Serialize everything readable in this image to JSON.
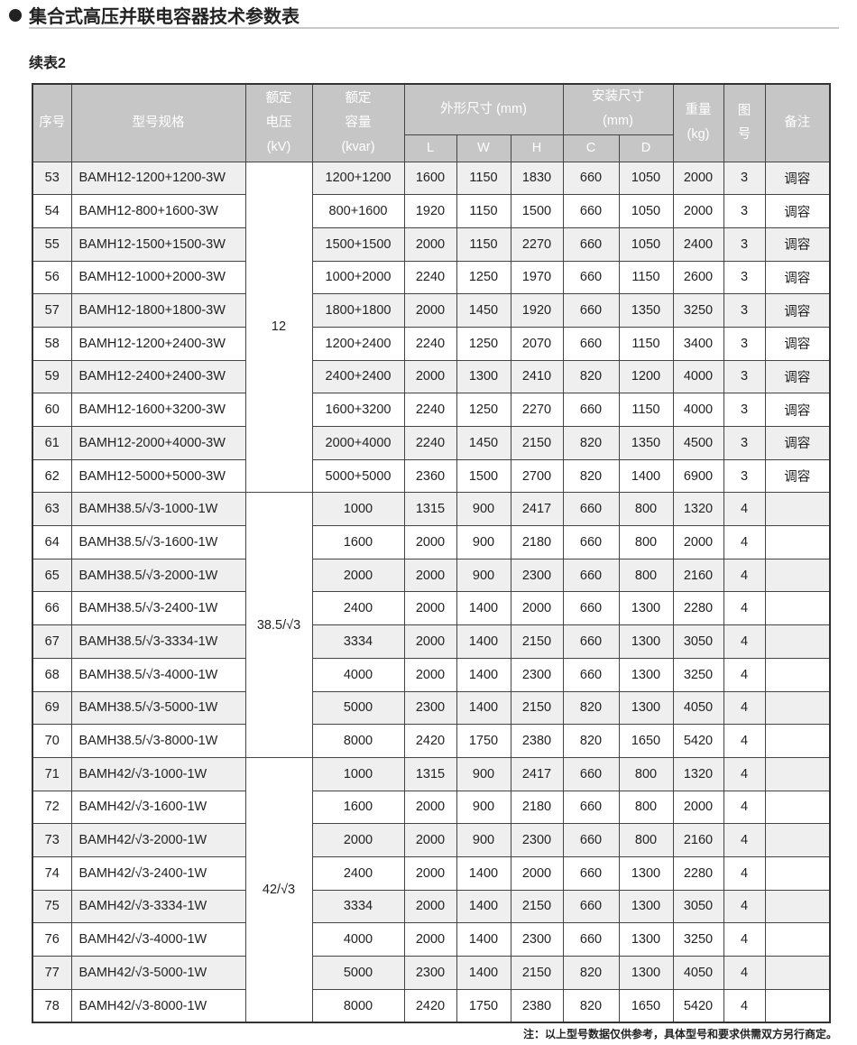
{
  "title": "集合式高压并联电容器技术参数表",
  "subtitle": "续表2",
  "header": {
    "no": "序号",
    "model": "型号规格",
    "voltage": [
      "额定",
      "电压",
      "(kV)"
    ],
    "capacity": [
      "额定",
      "容量",
      "(kvar)"
    ],
    "outline": "外形尺寸  (mm)",
    "install": [
      "安装尺寸",
      "(mm)"
    ],
    "weight": [
      "重量",
      "(kg)"
    ],
    "fig": "图号",
    "remark": "备注",
    "L": "L",
    "W": "W",
    "H": "H",
    "C": "C",
    "D": "D"
  },
  "groups": [
    {
      "voltage": "12",
      "rows": [
        [
          "53",
          "BAMH12-1200+1200-3W",
          "1200+1200",
          "1600",
          "1150",
          "1830",
          "660",
          "1050",
          "2000",
          "3",
          "调容"
        ],
        [
          "54",
          "BAMH12-800+1600-3W",
          "800+1600",
          "1920",
          "1150",
          "1500",
          "660",
          "1050",
          "2000",
          "3",
          "调容"
        ],
        [
          "55",
          "BAMH12-1500+1500-3W",
          "1500+1500",
          "2000",
          "1150",
          "2270",
          "660",
          "1050",
          "2400",
          "3",
          "调容"
        ],
        [
          "56",
          "BAMH12-1000+2000-3W",
          "1000+2000",
          "2240",
          "1250",
          "1970",
          "660",
          "1150",
          "2600",
          "3",
          "调容"
        ],
        [
          "57",
          "BAMH12-1800+1800-3W",
          "1800+1800",
          "2000",
          "1450",
          "1920",
          "660",
          "1350",
          "3250",
          "3",
          "调容"
        ],
        [
          "58",
          "BAMH12-1200+2400-3W",
          "1200+2400",
          "2240",
          "1250",
          "2070",
          "660",
          "1150",
          "3400",
          "3",
          "调容"
        ],
        [
          "59",
          "BAMH12-2400+2400-3W",
          "2400+2400",
          "2000",
          "1300",
          "2410",
          "820",
          "1200",
          "4000",
          "3",
          "调容"
        ],
        [
          "60",
          "BAMH12-1600+3200-3W",
          "1600+3200",
          "2240",
          "1250",
          "2270",
          "660",
          "1150",
          "4000",
          "3",
          "调容"
        ],
        [
          "61",
          "BAMH12-2000+4000-3W",
          "2000+4000",
          "2240",
          "1450",
          "2150",
          "820",
          "1350",
          "4500",
          "3",
          "调容"
        ],
        [
          "62",
          "BAMH12-5000+5000-3W",
          "5000+5000",
          "2360",
          "1500",
          "2700",
          "820",
          "1400",
          "6900",
          "3",
          "调容"
        ]
      ]
    },
    {
      "voltage": "38.5/√3",
      "rows": [
        [
          "63",
          "BAMH38.5/√3-1000-1W",
          "1000",
          "1315",
          "900",
          "2417",
          "660",
          "800",
          "1320",
          "4",
          ""
        ],
        [
          "64",
          "BAMH38.5/√3-1600-1W",
          "1600",
          "2000",
          "900",
          "2180",
          "660",
          "800",
          "2000",
          "4",
          ""
        ],
        [
          "65",
          "BAMH38.5/√3-2000-1W",
          "2000",
          "2000",
          "900",
          "2300",
          "660",
          "800",
          "2160",
          "4",
          ""
        ],
        [
          "66",
          "BAMH38.5/√3-2400-1W",
          "2400",
          "2000",
          "1400",
          "2000",
          "660",
          "1300",
          "2280",
          "4",
          ""
        ],
        [
          "67",
          "BAMH38.5/√3-3334-1W",
          "3334",
          "2000",
          "1400",
          "2150",
          "660",
          "1300",
          "3050",
          "4",
          ""
        ],
        [
          "68",
          "BAMH38.5/√3-4000-1W",
          "4000",
          "2000",
          "1400",
          "2300",
          "660",
          "1300",
          "3250",
          "4",
          ""
        ],
        [
          "69",
          "BAMH38.5/√3-5000-1W",
          "5000",
          "2300",
          "1400",
          "2150",
          "820",
          "1300",
          "4050",
          "4",
          ""
        ],
        [
          "70",
          "BAMH38.5/√3-8000-1W",
          "8000",
          "2420",
          "1750",
          "2380",
          "820",
          "1650",
          "5420",
          "4",
          ""
        ]
      ]
    },
    {
      "voltage": "42/√3",
      "rows": [
        [
          "71",
          "BAMH42/√3-1000-1W",
          "1000",
          "1315",
          "900",
          "2417",
          "660",
          "800",
          "1320",
          "4",
          ""
        ],
        [
          "72",
          "BAMH42/√3-1600-1W",
          "1600",
          "2000",
          "900",
          "2180",
          "660",
          "800",
          "2000",
          "4",
          ""
        ],
        [
          "73",
          "BAMH42/√3-2000-1W",
          "2000",
          "2000",
          "900",
          "2300",
          "660",
          "800",
          "2160",
          "4",
          ""
        ],
        [
          "74",
          "BAMH42/√3-2400-1W",
          "2400",
          "2000",
          "1400",
          "2000",
          "660",
          "1300",
          "2280",
          "4",
          ""
        ],
        [
          "75",
          "BAMH42/√3-3334-1W",
          "3334",
          "2000",
          "1400",
          "2150",
          "660",
          "1300",
          "3050",
          "4",
          ""
        ],
        [
          "76",
          "BAMH42/√3-4000-1W",
          "4000",
          "2000",
          "1400",
          "2300",
          "660",
          "1300",
          "3250",
          "4",
          ""
        ],
        [
          "77",
          "BAMH42/√3-5000-1W",
          "5000",
          "2300",
          "1400",
          "2150",
          "820",
          "1300",
          "4050",
          "4",
          ""
        ],
        [
          "78",
          "BAMH42/√3-8000-1W",
          "8000",
          "2420",
          "1750",
          "2380",
          "820",
          "1650",
          "5420",
          "4",
          ""
        ]
      ]
    }
  ],
  "note": "注：以上型号数据仅供参考，具体型号和要求供需双方另行商定。"
}
